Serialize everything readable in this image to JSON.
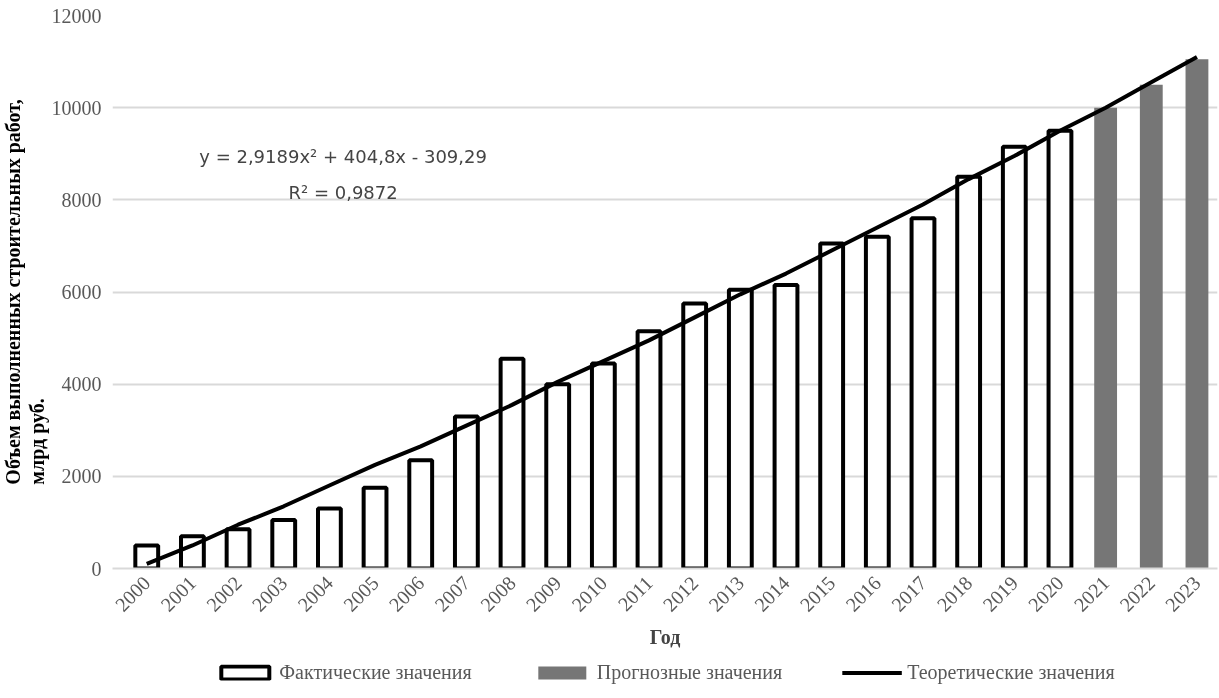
{
  "chart_data": {
    "type": "bar",
    "xlabel": "Год",
    "ylabel": "Объем выполненных строительных работ,\nмлрд руб.",
    "categories": [
      "2000",
      "2001",
      "2002",
      "2003",
      "2004",
      "2005",
      "2006",
      "2007",
      "2008",
      "2009",
      "2010",
      "2011",
      "2012",
      "2013",
      "2014",
      "2015",
      "2016",
      "2017",
      "2018",
      "2019",
      "2020",
      "2021",
      "2022",
      "2023"
    ],
    "series": [
      {
        "name": "Фактические значения",
        "color": "#000000",
        "values": [
          500,
          700,
          850,
          1050,
          1300,
          1750,
          2350,
          3300,
          4550,
          4000,
          4450,
          5150,
          5750,
          6050,
          6150,
          7050,
          7200,
          7600,
          8500,
          9150,
          9500,
          null,
          null,
          null
        ]
      },
      {
        "name": "Прогнозные значения",
        "color": "#767676",
        "values": [
          null,
          null,
          null,
          null,
          null,
          null,
          null,
          null,
          null,
          null,
          null,
          null,
          null,
          null,
          null,
          null,
          null,
          null,
          null,
          null,
          null,
          10000,
          10500,
          11050
        ]
      },
      {
        "name": "Теоретические значения",
        "type": "line",
        "color": "#000000",
        "values": [
          100,
          500,
          950,
          1350,
          1800,
          2250,
          2650,
          3100,
          3550,
          4050,
          4500,
          4950,
          5450,
          5950,
          6400,
          6900,
          7400,
          7900,
          8450,
          8950,
          9500,
          10000,
          10550,
          11100
        ]
      }
    ],
    "annotations": [
      "y = 2,9189x² + 404,8x - 309,29",
      "R² = 0,9872"
    ],
    "ylim": [
      0,
      12000
    ],
    "yticks": [
      0,
      2000,
      4000,
      6000,
      8000,
      10000,
      12000
    ],
    "grid": "y",
    "legend": "bottom",
    "line_style": "solid",
    "marker": "none"
  }
}
